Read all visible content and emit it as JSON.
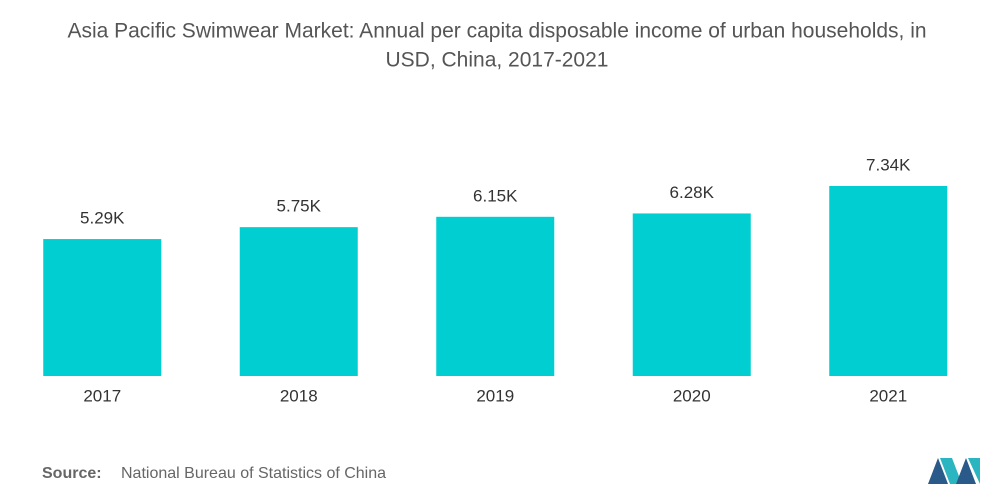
{
  "chart_data": {
    "type": "bar",
    "title": [
      "Asia Pacific Swimwear Market: Annual per capita disposable income of urban households, in",
      "USD, China, 2017-2021"
    ],
    "categories": [
      "2017",
      "2018",
      "2019",
      "2020",
      "2021"
    ],
    "values": [
      5290,
      5750,
      6150,
      6280,
      7340
    ],
    "value_labels": [
      "5.29K",
      "5.75K",
      "6.15K",
      "6.28K",
      "7.34K"
    ],
    "color": "#00ced1",
    "source_label": "Source:",
    "source": "National Bureau of Statistics of China"
  }
}
